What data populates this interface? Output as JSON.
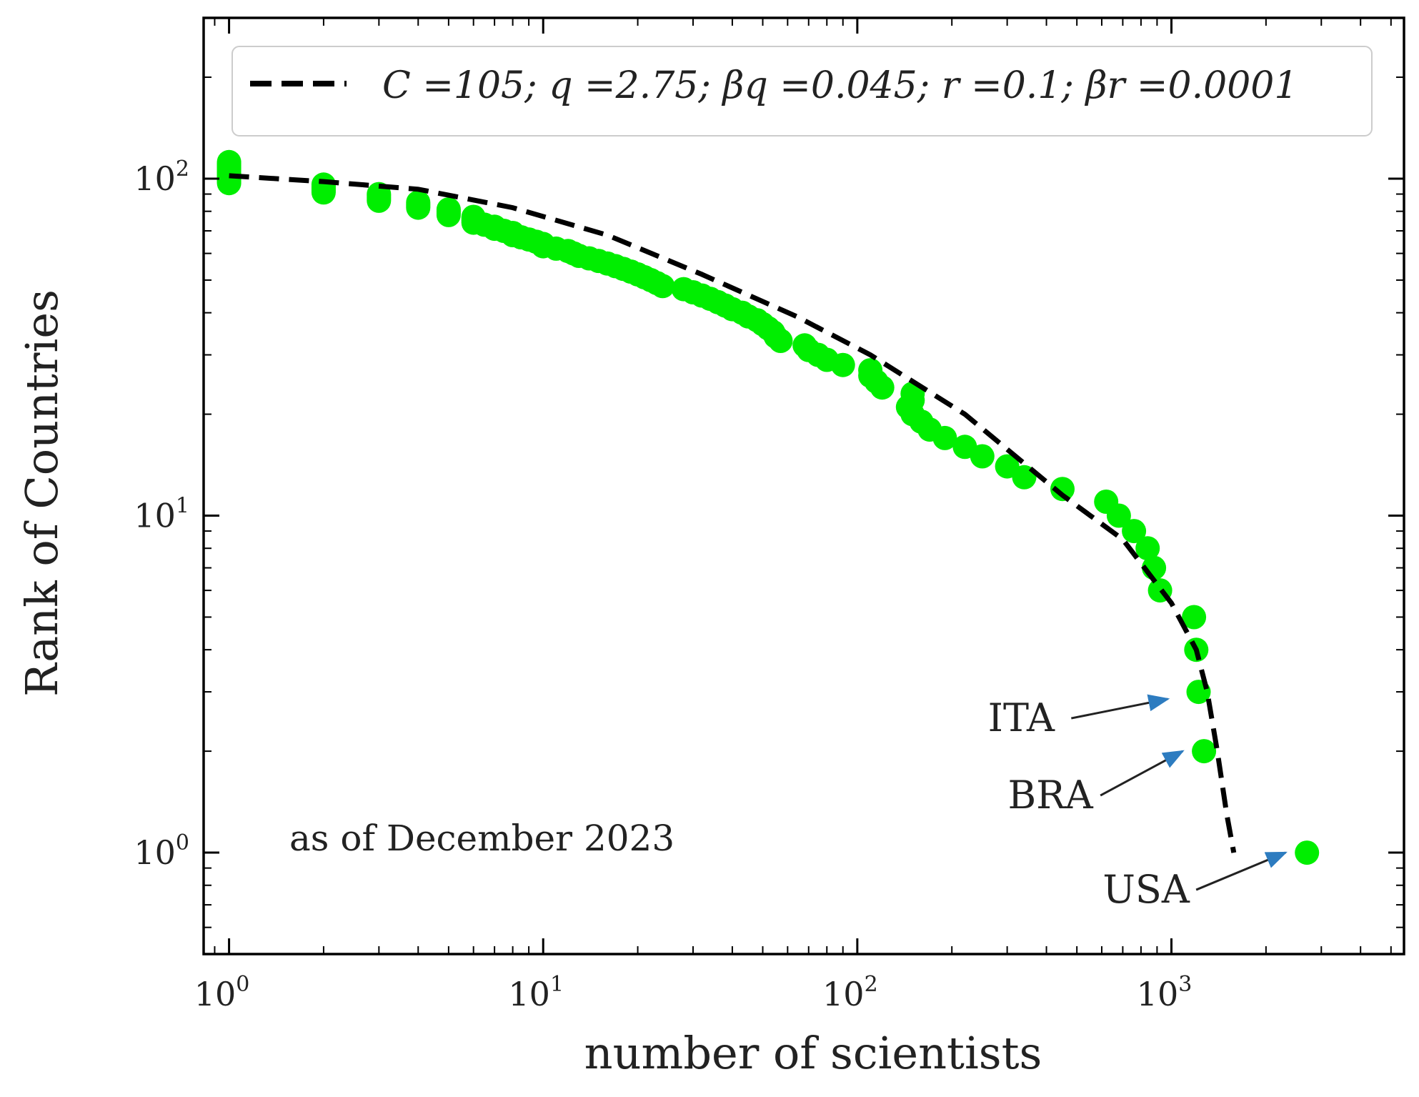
{
  "chart_data": {
    "type": "scatter",
    "xlabel": "number of scientists",
    "ylabel": "Rank of Countries",
    "xscale": "log",
    "yscale": "log",
    "xlim": [
      0.83,
      5500
    ],
    "ylim": [
      0.5,
      300
    ],
    "x_ticks": [
      {
        "base": "10",
        "exp": "0",
        "value": 1
      },
      {
        "base": "10",
        "exp": "1",
        "value": 10
      },
      {
        "base": "10",
        "exp": "2",
        "value": 100
      },
      {
        "base": "10",
        "exp": "3",
        "value": 1000
      }
    ],
    "y_ticks": [
      {
        "base": "10",
        "exp": "0",
        "value": 1
      },
      {
        "base": "10",
        "exp": "1",
        "value": 10
      },
      {
        "base": "10",
        "exp": "2",
        "value": 100
      }
    ],
    "grid": false,
    "legend": {
      "placement": "top",
      "text": "C =105; q =2.75; βq =0.045; r =0.1; βr =0.0001"
    },
    "note": "as of December 2023",
    "colors": {
      "points": "#00ee00",
      "fit": "#000000",
      "arrow": "#2d7cc0"
    },
    "series": [
      {
        "style": "green markers",
        "points": [
          [
            2700,
            1
          ],
          [
            1270,
            2
          ],
          [
            1220,
            3
          ],
          [
            1200,
            4
          ],
          [
            1180,
            5
          ],
          [
            920,
            6
          ],
          [
            880,
            7
          ],
          [
            840,
            8
          ],
          [
            760,
            9
          ],
          [
            680,
            10
          ],
          [
            620,
            11
          ],
          [
            450,
            12
          ],
          [
            340,
            13
          ],
          [
            300,
            14
          ],
          [
            250,
            15
          ],
          [
            220,
            16
          ],
          [
            190,
            17
          ],
          [
            170,
            18
          ],
          [
            160,
            19
          ],
          [
            150,
            20
          ],
          [
            145,
            21
          ],
          [
            150,
            22
          ],
          [
            150,
            23
          ],
          [
            120,
            24
          ],
          [
            115,
            25
          ],
          [
            110,
            26
          ],
          [
            110,
            27
          ],
          [
            90,
            28
          ],
          [
            80,
            29
          ],
          [
            75,
            30
          ],
          [
            70,
            31
          ],
          [
            68,
            32
          ],
          [
            57,
            33
          ],
          [
            55,
            34
          ],
          [
            54,
            35
          ],
          [
            52,
            36
          ],
          [
            50,
            37
          ],
          [
            48,
            38
          ],
          [
            45,
            39
          ],
          [
            43,
            40
          ],
          [
            40,
            41
          ],
          [
            38,
            42
          ],
          [
            36,
            43
          ],
          [
            34,
            44
          ],
          [
            32,
            45
          ],
          [
            30,
            46
          ],
          [
            28,
            47
          ],
          [
            24,
            48
          ],
          [
            23,
            49
          ],
          [
            22,
            50
          ],
          [
            21,
            51
          ],
          [
            20,
            52
          ],
          [
            19,
            53
          ],
          [
            18,
            54
          ],
          [
            17,
            55
          ],
          [
            16,
            56
          ],
          [
            15,
            57
          ],
          [
            14,
            58
          ],
          [
            13,
            59
          ],
          [
            12.5,
            60
          ],
          [
            12,
            61
          ],
          [
            11,
            62
          ],
          [
            10,
            63
          ],
          [
            10,
            64
          ],
          [
            9.5,
            65
          ],
          [
            9,
            66
          ],
          [
            8.5,
            67
          ],
          [
            8,
            68
          ],
          [
            8,
            69
          ],
          [
            7.5,
            70
          ],
          [
            7,
            71
          ],
          [
            7,
            72
          ],
          [
            6.5,
            73
          ],
          [
            6,
            74
          ],
          [
            6,
            75
          ],
          [
            6,
            76
          ],
          [
            6,
            77
          ],
          [
            5,
            78
          ],
          [
            5,
            79
          ],
          [
            5,
            80
          ],
          [
            5,
            81
          ],
          [
            4,
            82
          ],
          [
            4,
            83
          ],
          [
            4,
            84
          ],
          [
            4,
            85
          ],
          [
            3,
            86
          ],
          [
            3,
            87
          ],
          [
            3,
            88
          ],
          [
            3,
            89
          ],
          [
            3,
            90
          ],
          [
            2,
            91
          ],
          [
            2,
            92
          ],
          [
            2,
            93
          ],
          [
            2,
            94
          ],
          [
            2,
            95
          ],
          [
            2,
            96
          ],
          [
            1,
            97
          ],
          [
            1,
            98
          ],
          [
            1,
            99
          ],
          [
            1,
            100
          ],
          [
            1,
            101
          ],
          [
            1,
            102
          ],
          [
            1,
            103
          ],
          [
            1,
            104
          ],
          [
            1,
            105
          ],
          [
            1,
            106
          ],
          [
            1,
            107
          ],
          [
            1,
            108
          ],
          [
            1,
            109
          ],
          [
            1,
            110
          ],
          [
            1,
            111
          ],
          [
            1,
            112
          ]
        ]
      },
      {
        "style": "black dashed fit",
        "points": [
          [
            1,
            102
          ],
          [
            2,
            98
          ],
          [
            4,
            93
          ],
          [
            8,
            82
          ],
          [
            16,
            68
          ],
          [
            32,
            52
          ],
          [
            64,
            39
          ],
          [
            110,
            30
          ],
          [
            220,
            20
          ],
          [
            450,
            11.5
          ],
          [
            700,
            8.5
          ],
          [
            1000,
            5.5
          ],
          [
            1200,
            4
          ],
          [
            1300,
            3
          ],
          [
            1400,
            2
          ],
          [
            1500,
            1.3
          ],
          [
            1580,
            1
          ]
        ]
      }
    ],
    "annotations": [
      {
        "label": "ITA",
        "x": 1200,
        "y": 3
      },
      {
        "label": "BRA",
        "x": 1270,
        "y": 2
      },
      {
        "label": "USA",
        "x": 2700,
        "y": 1
      }
    ]
  }
}
